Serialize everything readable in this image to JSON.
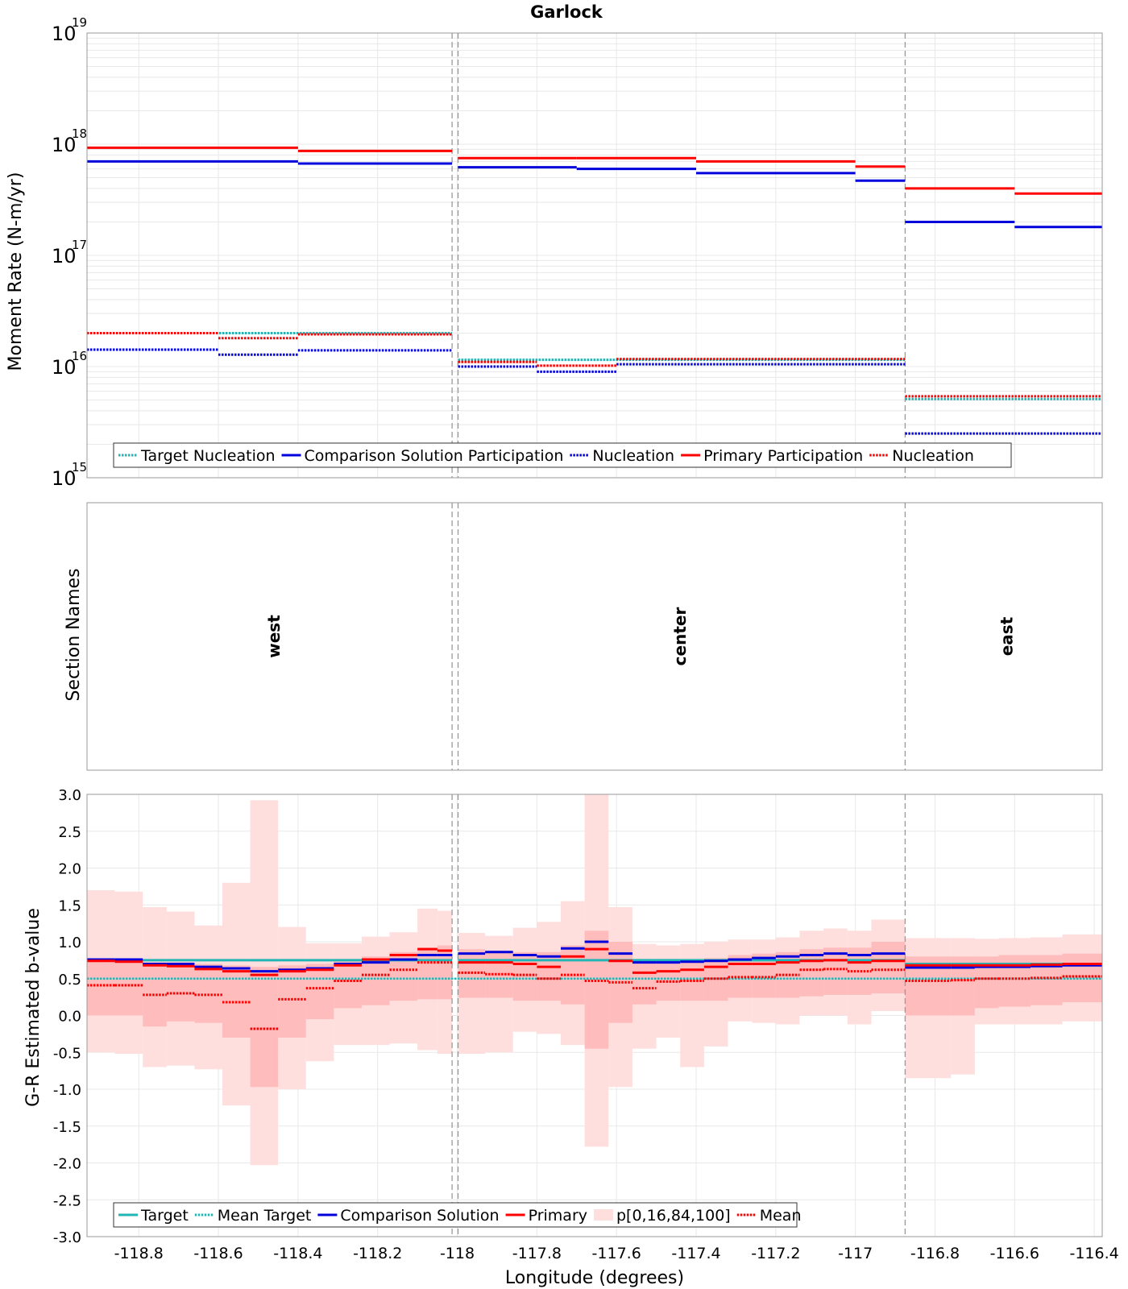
{
  "chart_data": {
    "type": "line",
    "title": "Garlock",
    "xlabel": "Longitude (degrees)",
    "xlim": [
      -118.93,
      -116.38
    ],
    "xticks": [
      -118.8,
      -118.6,
      -118.4,
      -118.2,
      -118,
      -117.8,
      -117.6,
      -117.4,
      -117.2,
      -117,
      -116.8,
      -116.6,
      -116.4
    ],
    "xtick_labels": [
      "-118.8",
      "-118.6",
      "-118.4",
      "-118.2",
      "-118",
      "-117.8",
      "-117.6",
      "-117.4",
      "-117.2",
      "-117",
      "-116.8",
      "-116.6",
      "-116.4"
    ],
    "section_boundaries": [
      -118.013,
      -117.998,
      -116.875
    ],
    "colors": {
      "target": "#22b5b5",
      "comparison": "#0000dd",
      "primary": "#ff0000",
      "band_outer": "#ffdede",
      "band_inner": "#ffbcbc",
      "grid": "#e8e8e8",
      "boundary": "#999999"
    },
    "panels": [
      {
        "id": "moment-rate",
        "ylabel": "Moment Rate (N-m/yr)",
        "yscale": "log",
        "ylim": [
          1000000000000000.0,
          1e+19
        ],
        "ytick_labels": [
          {
            "base": "10",
            "exp": "15"
          },
          {
            "base": "10",
            "exp": "16"
          },
          {
            "base": "10",
            "exp": "17"
          },
          {
            "base": "10",
            "exp": "18"
          },
          {
            "base": "10",
            "exp": "19"
          }
        ],
        "legend": [
          "Target Nucleation",
          "Comparison Solution Participation",
          "Nucleation",
          "Primary Participation",
          "Nucleation"
        ],
        "series": [
          {
            "name": "Primary Participation",
            "style": "solid",
            "color": "#ff0000",
            "segments": [
              {
                "x0": -118.93,
                "x1": -118.4,
                "y": 9.3e+17
              },
              {
                "x0": -118.4,
                "x1": -118.013,
                "y": 8.7e+17
              },
              {
                "x0": -117.998,
                "x1": -117.7,
                "y": 7.5e+17
              },
              {
                "x0": -117.7,
                "x1": -117.4,
                "y": 7.5e+17
              },
              {
                "x0": -117.4,
                "x1": -117,
                "y": 7e+17
              },
              {
                "x0": -117,
                "x1": -116.875,
                "y": 6.3e+17
              },
              {
                "x0": -116.875,
                "x1": -116.6,
                "y": 4e+17
              },
              {
                "x0": -116.6,
                "x1": -116.38,
                "y": 3.6e+17
              }
            ]
          },
          {
            "name": "Comparison Solution Participation",
            "style": "solid",
            "color": "#0000dd",
            "segments": [
              {
                "x0": -118.93,
                "x1": -118.4,
                "y": 7e+17
              },
              {
                "x0": -118.4,
                "x1": -118.013,
                "y": 6.7e+17
              },
              {
                "x0": -117.998,
                "x1": -117.7,
                "y": 6.2e+17
              },
              {
                "x0": -117.7,
                "x1": -117.4,
                "y": 6e+17
              },
              {
                "x0": -117.4,
                "x1": -117,
                "y": 5.5e+17
              },
              {
                "x0": -117,
                "x1": -116.875,
                "y": 4.7e+17
              },
              {
                "x0": -116.875,
                "x1": -116.6,
                "y": 2e+17
              },
              {
                "x0": -116.6,
                "x1": -116.38,
                "y": 1.8e+17
              }
            ]
          },
          {
            "name": "Target Nucleation",
            "style": "dotted",
            "color": "#22b5b5",
            "segments": [
              {
                "x0": -118.93,
                "x1": -118.013,
                "y": 2e+16
              },
              {
                "x0": -117.998,
                "x1": -116.875,
                "y": 1.15e+16
              },
              {
                "x0": -116.875,
                "x1": -116.38,
                "y": 5100000000000000.0
              }
            ]
          },
          {
            "name": "Primary Nucleation",
            "style": "dotted",
            "color": "#ff0000",
            "segments": [
              {
                "x0": -118.93,
                "x1": -118.6,
                "y": 2e+16
              },
              {
                "x0": -118.6,
                "x1": -118.4,
                "y": 1.8e+16
              },
              {
                "x0": -118.4,
                "x1": -118.013,
                "y": 1.95e+16
              },
              {
                "x0": -117.998,
                "x1": -117.8,
                "y": 1.1e+16
              },
              {
                "x0": -117.8,
                "x1": -117.6,
                "y": 1.02e+16
              },
              {
                "x0": -117.6,
                "x1": -116.875,
                "y": 1.17e+16
              },
              {
                "x0": -116.875,
                "x1": -116.38,
                "y": 5400000000000000.0
              }
            ]
          },
          {
            "name": "Comparison Nucleation",
            "style": "dotted",
            "color": "#0000dd",
            "segments": [
              {
                "x0": -118.93,
                "x1": -118.6,
                "y": 1.42e+16
              },
              {
                "x0": -118.6,
                "x1": -118.4,
                "y": 1.28e+16
              },
              {
                "x0": -118.4,
                "x1": -118.013,
                "y": 1.4e+16
              },
              {
                "x0": -117.998,
                "x1": -117.8,
                "y": 1e+16
              },
              {
                "x0": -117.8,
                "x1": -117.6,
                "y": 9000000000000000.0
              },
              {
                "x0": -117.6,
                "x1": -116.875,
                "y": 1.05e+16
              },
              {
                "x0": -116.875,
                "x1": -116.38,
                "y": 2500000000000000.0
              }
            ]
          }
        ]
      },
      {
        "id": "section-names",
        "ylabel": "Section Names",
        "sections": [
          {
            "name": "west",
            "x": -118.46
          },
          {
            "name": "center",
            "x": -117.44
          },
          {
            "name": "east",
            "x": -116.62
          }
        ]
      },
      {
        "id": "b-value",
        "ylabel": "G-R Estimated b-value",
        "ylim": [
          -3.0,
          3.0
        ],
        "yticks": [
          -3.0,
          -2.5,
          -2.0,
          -1.5,
          -1.0,
          -0.5,
          0.0,
          0.5,
          1.0,
          1.5,
          2.0,
          2.5,
          3.0
        ],
        "ytick_labels": [
          "-3.0",
          "-2.5",
          "-2.0",
          "-1.5",
          "-1.0",
          "-0.5",
          "0.0",
          "0.5",
          "1.0",
          "1.5",
          "2.0",
          "2.5",
          "3.0"
        ],
        "legend": [
          "Target",
          "Mean Target",
          "Comparison Solution",
          "Primary",
          "p[0,16,84,100]",
          "Mean"
        ],
        "bins": [
          {
            "x0": -118.93,
            "x1": -118.86,
            "p0": -0.5,
            "p16": 0.0,
            "p84": 0.75,
            "p100": 1.7,
            "primary": 0.74,
            "comparison": 0.76,
            "mean": 0.41
          },
          {
            "x0": -118.86,
            "x1": -118.79,
            "p0": -0.52,
            "p16": 0.0,
            "p84": 0.75,
            "p100": 1.68,
            "primary": 0.73,
            "comparison": 0.76,
            "mean": 0.41
          },
          {
            "x0": -118.79,
            "x1": -118.73,
            "p0": -0.7,
            "p16": -0.15,
            "p84": 0.72,
            "p100": 1.47,
            "primary": 0.68,
            "comparison": 0.7,
            "mean": 0.28
          },
          {
            "x0": -118.73,
            "x1": -118.66,
            "p0": -0.68,
            "p16": -0.08,
            "p84": 0.72,
            "p100": 1.41,
            "primary": 0.67,
            "comparison": 0.7,
            "mean": 0.3
          },
          {
            "x0": -118.66,
            "x1": -118.59,
            "p0": -0.73,
            "p16": -0.1,
            "p84": 0.7,
            "p100": 1.22,
            "primary": 0.63,
            "comparison": 0.66,
            "mean": 0.28
          },
          {
            "x0": -118.59,
            "x1": -118.52,
            "p0": -1.22,
            "p16": -0.3,
            "p84": 0.68,
            "p100": 1.8,
            "primary": 0.6,
            "comparison": 0.64,
            "mean": 0.18
          },
          {
            "x0": -118.52,
            "x1": -118.45,
            "p0": -2.03,
            "p16": -0.97,
            "p84": 0.66,
            "p100": 2.92,
            "primary": 0.55,
            "comparison": 0.6,
            "mean": -0.18
          },
          {
            "x0": -118.45,
            "x1": -118.38,
            "p0": -1.0,
            "p16": -0.3,
            "p84": 0.68,
            "p100": 1.2,
            "primary": 0.6,
            "comparison": 0.62,
            "mean": 0.22
          },
          {
            "x0": -118.38,
            "x1": -118.31,
            "p0": -0.62,
            "p16": -0.05,
            "p84": 0.7,
            "p100": 0.98,
            "primary": 0.62,
            "comparison": 0.64,
            "mean": 0.37
          },
          {
            "x0": -118.31,
            "x1": -118.24,
            "p0": -0.4,
            "p16": 0.1,
            "p84": 0.76,
            "p100": 0.98,
            "primary": 0.68,
            "comparison": 0.7,
            "mean": 0.47
          },
          {
            "x0": -118.24,
            "x1": -118.17,
            "p0": -0.4,
            "p16": 0.14,
            "p84": 0.8,
            "p100": 1.07,
            "primary": 0.76,
            "comparison": 0.72,
            "mean": 0.55
          },
          {
            "x0": -118.17,
            "x1": -118.1,
            "p0": -0.38,
            "p16": 0.2,
            "p84": 0.86,
            "p100": 1.13,
            "primary": 0.82,
            "comparison": 0.76,
            "mean": 0.62
          },
          {
            "x0": -118.1,
            "x1": -118.05,
            "p0": -0.47,
            "p16": 0.22,
            "p84": 0.92,
            "p100": 1.45,
            "primary": 0.9,
            "comparison": 0.82,
            "mean": 0.72
          },
          {
            "x0": -118.05,
            "x1": -118.013,
            "p0": -0.52,
            "p16": 0.22,
            "p84": 0.95,
            "p100": 1.42,
            "primary": 0.88,
            "comparison": 0.82,
            "mean": 0.72
          },
          {
            "x0": -117.998,
            "x1": -117.93,
            "p0": -0.52,
            "p16": 0.24,
            "p84": 0.9,
            "p100": 1.12,
            "primary": 0.72,
            "comparison": 0.84,
            "mean": 0.58
          },
          {
            "x0": -117.93,
            "x1": -117.86,
            "p0": -0.5,
            "p16": 0.24,
            "p84": 0.88,
            "p100": 1.08,
            "primary": 0.72,
            "comparison": 0.86,
            "mean": 0.56
          },
          {
            "x0": -117.86,
            "x1": -117.8,
            "p0": -0.22,
            "p16": 0.2,
            "p84": 0.86,
            "p100": 1.19,
            "primary": 0.7,
            "comparison": 0.82,
            "mean": 0.55
          },
          {
            "x0": -117.8,
            "x1": -117.74,
            "p0": -0.25,
            "p16": 0.2,
            "p84": 0.86,
            "p100": 1.27,
            "primary": 0.66,
            "comparison": 0.8,
            "mean": 0.5
          },
          {
            "x0": -117.74,
            "x1": -117.68,
            "p0": -0.4,
            "p16": 0.15,
            "p84": 0.95,
            "p100": 1.55,
            "primary": 0.8,
            "comparison": 0.91,
            "mean": 0.55
          },
          {
            "x0": -117.68,
            "x1": -117.62,
            "p0": -1.78,
            "p16": -0.45,
            "p84": 1.15,
            "p100": 3.0,
            "primary": 0.9,
            "comparison": 1.0,
            "mean": 0.47
          },
          {
            "x0": -117.62,
            "x1": -117.56,
            "p0": -0.97,
            "p16": -0.1,
            "p84": 1.0,
            "p100": 1.47,
            "primary": 0.74,
            "comparison": 0.84,
            "mean": 0.45
          },
          {
            "x0": -117.56,
            "x1": -117.5,
            "p0": -0.45,
            "p16": 0.15,
            "p84": 0.75,
            "p100": 0.97,
            "primary": 0.58,
            "comparison": 0.72,
            "mean": 0.37
          },
          {
            "x0": -117.5,
            "x1": -117.44,
            "p0": -0.3,
            "p16": 0.2,
            "p84": 0.74,
            "p100": 0.95,
            "primary": 0.6,
            "comparison": 0.72,
            "mean": 0.46
          },
          {
            "x0": -117.44,
            "x1": -117.38,
            "p0": -0.7,
            "p16": 0.2,
            "p84": 0.75,
            "p100": 0.97,
            "primary": 0.62,
            "comparison": 0.73,
            "mean": 0.47
          },
          {
            "x0": -117.38,
            "x1": -117.32,
            "p0": -0.42,
            "p16": 0.2,
            "p84": 0.78,
            "p100": 1.0,
            "primary": 0.66,
            "comparison": 0.74,
            "mean": 0.5
          },
          {
            "x0": -117.32,
            "x1": -117.26,
            "p0": -0.08,
            "p16": 0.24,
            "p84": 0.82,
            "p100": 1.03,
            "primary": 0.7,
            "comparison": 0.76,
            "mean": 0.52
          },
          {
            "x0": -117.26,
            "x1": -117.2,
            "p0": -0.1,
            "p16": 0.24,
            "p84": 0.84,
            "p100": 1.03,
            "primary": 0.7,
            "comparison": 0.78,
            "mean": 0.52
          },
          {
            "x0": -117.2,
            "x1": -117.14,
            "p0": -0.12,
            "p16": 0.24,
            "p84": 0.86,
            "p100": 1.06,
            "primary": 0.72,
            "comparison": 0.8,
            "mean": 0.55
          },
          {
            "x0": -117.14,
            "x1": -117.08,
            "p0": 0.0,
            "p16": 0.26,
            "p84": 0.9,
            "p100": 1.15,
            "primary": 0.74,
            "comparison": 0.82,
            "mean": 0.62
          },
          {
            "x0": -117.08,
            "x1": -117.02,
            "p0": 0.0,
            "p16": 0.28,
            "p84": 0.92,
            "p100": 1.18,
            "primary": 0.75,
            "comparison": 0.84,
            "mean": 0.63
          },
          {
            "x0": -117.02,
            "x1": -116.96,
            "p0": -0.12,
            "p16": 0.28,
            "p84": 0.92,
            "p100": 1.15,
            "primary": 0.72,
            "comparison": 0.82,
            "mean": 0.6
          },
          {
            "x0": -116.96,
            "x1": -116.875,
            "p0": 0.06,
            "p16": 0.3,
            "p84": 1.0,
            "p100": 1.3,
            "primary": 0.74,
            "comparison": 0.84,
            "mean": 0.62
          },
          {
            "x0": -116.875,
            "x1": -116.76,
            "p0": -0.85,
            "p16": 0.0,
            "p84": 0.8,
            "p100": 1.05,
            "primary": 0.68,
            "comparison": 0.65,
            "mean": 0.47
          },
          {
            "x0": -116.76,
            "x1": -116.7,
            "p0": -0.8,
            "p16": 0.0,
            "p84": 0.8,
            "p100": 1.05,
            "primary": 0.68,
            "comparison": 0.65,
            "mean": 0.48
          },
          {
            "x0": -116.7,
            "x1": -116.64,
            "p0": -0.12,
            "p16": 0.1,
            "p84": 0.8,
            "p100": 1.04,
            "primary": 0.68,
            "comparison": 0.66,
            "mean": 0.5
          },
          {
            "x0": -116.64,
            "x1": -116.56,
            "p0": -0.12,
            "p16": 0.12,
            "p84": 0.82,
            "p100": 1.05,
            "primary": 0.68,
            "comparison": 0.66,
            "mean": 0.5
          },
          {
            "x0": -116.56,
            "x1": -116.48,
            "p0": -0.12,
            "p16": 0.14,
            "p84": 0.82,
            "p100": 1.06,
            "primary": 0.69,
            "comparison": 0.67,
            "mean": 0.51
          },
          {
            "x0": -116.48,
            "x1": -116.38,
            "p0": -0.08,
            "p16": 0.18,
            "p84": 0.84,
            "p100": 1.1,
            "primary": 0.7,
            "comparison": 0.68,
            "mean": 0.53
          }
        ],
        "target": [
          {
            "x0": -118.93,
            "x1": -118.013,
            "y": 0.75
          },
          {
            "x0": -117.998,
            "x1": -116.875,
            "y": 0.75
          },
          {
            "x0": -116.875,
            "x1": -116.38,
            "y": 0.7
          }
        ],
        "mean_target": 0.5
      }
    ]
  }
}
